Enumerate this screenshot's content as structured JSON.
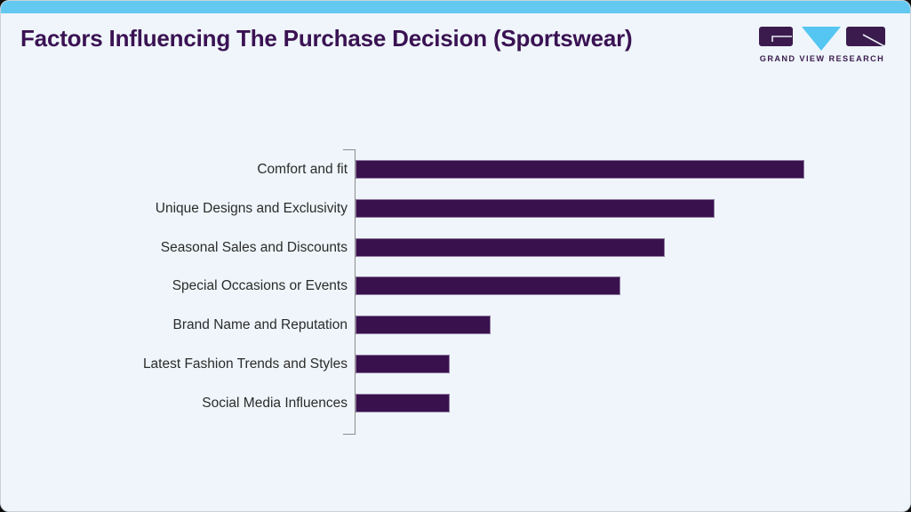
{
  "page": {
    "title": "Factors Influencing The Purchase Decision (Sportswear)"
  },
  "logo": {
    "text": "GRAND VIEW RESEARCH"
  },
  "colors": {
    "accent_top_bar": "#63c9f1",
    "card_background": "#eff5fa",
    "title_text": "#3a1253",
    "label_text": "#2b2b2b",
    "bar_fill": "#39114d",
    "bar_border": "#8f7aa0",
    "axis_line": "#8c8c8c",
    "logo_purple": "#3b1b4e",
    "logo_blue": "#55c6f2"
  },
  "chart_data": {
    "type": "bar",
    "orientation": "horizontal",
    "title": "Factors Influencing The Purchase Decision (Sportswear)",
    "categories": [
      "Comfort and fit",
      "Unique Designs and Exclusivity",
      "Seasonal Sales and Discounts",
      "Special Occasions or Events",
      "Brand Name and Reputation",
      "Latest Fashion Trends and Styles",
      "Social Media Influences"
    ],
    "values": [
      100,
      80,
      69,
      59,
      30,
      21,
      21
    ],
    "xlabel": "",
    "ylabel": "",
    "xlim": [
      0,
      100
    ],
    "grid": false,
    "legend": false,
    "value_labels_visible": false
  }
}
